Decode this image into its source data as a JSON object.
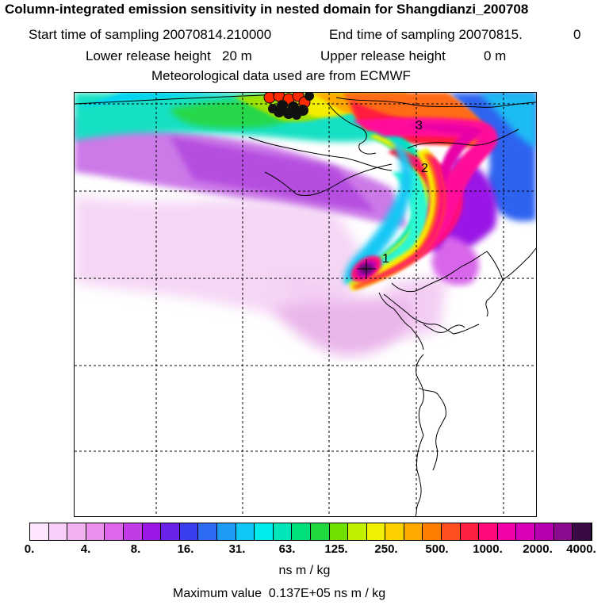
{
  "header": {
    "title": "Column-integrated emission sensitivity in nested domain for Shangdianzi_200708",
    "start_label": "Start time of sampling 20070814.210000",
    "end_label": "End time of sampling 20070815.",
    "end_suffix": "0",
    "lower_label": "Lower release height   20 m",
    "upper_label": "Upper release height",
    "upper_value": "0 m",
    "met_label": "Meteorological data used are from ECMWF"
  },
  "map": {
    "track_labels": [
      "1",
      "2",
      "3"
    ]
  },
  "colorbar": {
    "colors": [
      "#fde6fd",
      "#f8cdf8",
      "#f2b2f2",
      "#ec8fec",
      "#dd66ea",
      "#c23ce5",
      "#9a17e6",
      "#6b22e8",
      "#3a3cef",
      "#2d6cf2",
      "#1e9bf5",
      "#10c7f7",
      "#00ecec",
      "#00e6b8",
      "#00e07a",
      "#20d83c",
      "#70e000",
      "#c0ef00",
      "#f0f000",
      "#ffd000",
      "#ffa800",
      "#ff7e00",
      "#ff4e20",
      "#ff1f3e",
      "#ff0a78",
      "#f200a8",
      "#d800b8",
      "#b600b0",
      "#8c0a8e",
      "#3a0a44"
    ],
    "tick_labels": [
      "0.",
      "4.",
      "8.",
      "16.",
      "31.",
      "63.",
      "125.",
      "250.",
      "500.",
      "1000.",
      "2000.",
      "4000."
    ],
    "units": "ns m / kg"
  },
  "footer": {
    "max_value": "Maximum value  0.137E+05 ns m / kg"
  }
}
